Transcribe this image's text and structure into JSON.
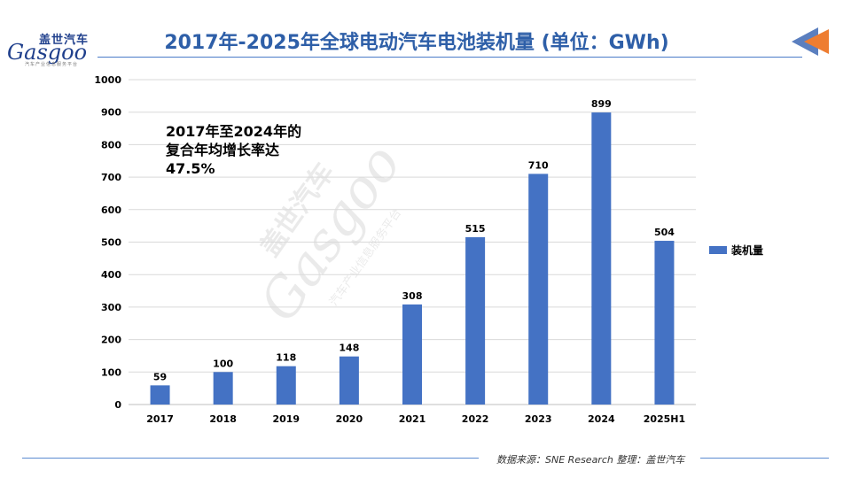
{
  "logo": {
    "cn": "盖世汽车",
    "en": "Gasgoo",
    "sub": "汽车产业信息服务平台"
  },
  "watermark": {
    "cn": "盖世汽车",
    "en": "Gasgoo",
    "sub": "汽车产业信息服务平台"
  },
  "title": "2017年-2025年全球电动汽车电池装机量 (单位：GWh)",
  "annotation": {
    "line1": "2017年至2024年的",
    "line2": "复合年均增长率达",
    "line3": "47.5%"
  },
  "source": "数据来源：SNE Research 整理：盖世汽车",
  "colors": {
    "bar": "#4472c4",
    "title": "#2e5fa8",
    "rule": "#4a7bc8",
    "arrow_dark": "#5b7fbf",
    "arrow_orange": "#ee7d31"
  },
  "chart_data": {
    "type": "bar",
    "title": "2017年-2025年全球电动汽车电池装机量 (单位：GWh)",
    "categories": [
      "2017",
      "2018",
      "2019",
      "2020",
      "2021",
      "2022",
      "2023",
      "2024",
      "2025H1"
    ],
    "series": [
      {
        "name": "装机量",
        "values": [
          59,
          100,
          118,
          148,
          308,
          515,
          710,
          899,
          504
        ]
      }
    ],
    "ylim": [
      0,
      1000
    ],
    "yticks": [
      0,
      100,
      200,
      300,
      400,
      500,
      600,
      700,
      800,
      900,
      1000
    ],
    "grid": true,
    "legend": "right",
    "data_labels": true
  }
}
